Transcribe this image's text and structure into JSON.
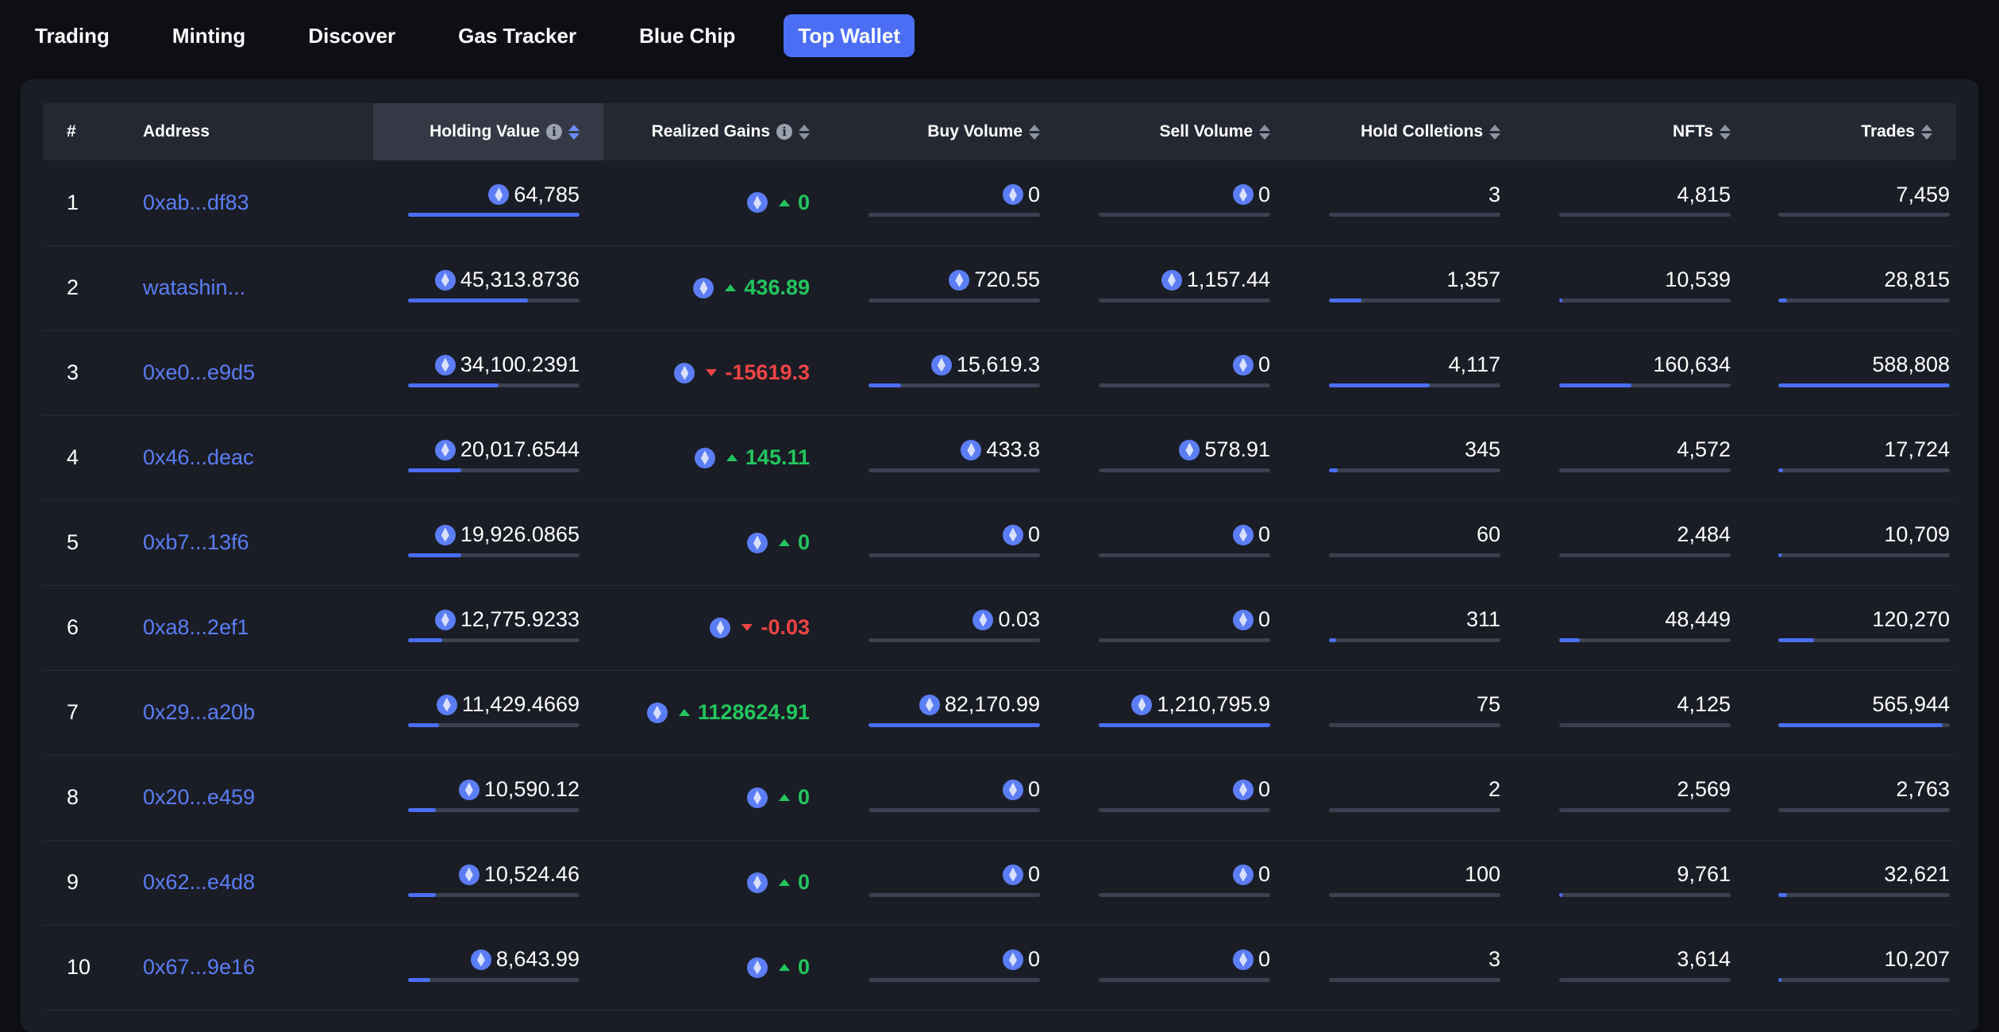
{
  "nav": {
    "tabs": [
      {
        "label": "Trading",
        "active": false
      },
      {
        "label": "Minting",
        "active": false
      },
      {
        "label": "Discover",
        "active": false
      },
      {
        "label": "Gas Tracker",
        "active": false
      },
      {
        "label": "Blue Chip",
        "active": false
      },
      {
        "label": "Top Wallet",
        "active": true
      }
    ]
  },
  "colors": {
    "accent": "#4b6ef5",
    "positive": "#22c55e",
    "negative": "#ef4444",
    "address": "#5b7df6"
  },
  "table": {
    "headers": {
      "rank": "#",
      "address": "Address",
      "holding_value": "Holding Value",
      "realized_gains": "Realized Gains",
      "buy_volume": "Buy Volume",
      "sell_volume": "Sell Volume",
      "hold_collections": "Hold Colletions",
      "nfts": "NFTs",
      "trades": "Trades"
    },
    "rows": [
      {
        "rank": "1",
        "address": "0xab...df83",
        "holding_value": "64,785",
        "holding_pct": 1.0,
        "realized_gains": "0",
        "gain_dir": "up",
        "buy_volume": "0",
        "buy_pct": 0.0,
        "sell_volume": "0",
        "sell_pct": 0.0,
        "hold_collections": "3",
        "collections_pct": 0.0,
        "nfts": "4,815",
        "nfts_pct": 0.0,
        "trades": "7,459",
        "trades_pct": 0.0
      },
      {
        "rank": "2",
        "address": "watashin...",
        "holding_value": "45,313.8736",
        "holding_pct": 0.7,
        "realized_gains": "436.89",
        "gain_dir": "up",
        "buy_volume": "720.55",
        "buy_pct": 0.0,
        "sell_volume": "1,157.44",
        "sell_pct": 0.0,
        "hold_collections": "1,357",
        "collections_pct": 0.19,
        "nfts": "10,539",
        "nfts_pct": 0.02,
        "trades": "28,815",
        "trades_pct": 0.05
      },
      {
        "rank": "3",
        "address": "0xe0...e9d5",
        "holding_value": "34,100.2391",
        "holding_pct": 0.53,
        "realized_gains": "-15619.3",
        "gain_dir": "down",
        "buy_volume": "15,619.3",
        "buy_pct": 0.19,
        "sell_volume": "0",
        "sell_pct": 0.0,
        "hold_collections": "4,117",
        "collections_pct": 0.59,
        "nfts": "160,634",
        "nfts_pct": 0.42,
        "trades": "588,808",
        "trades_pct": 1.0
      },
      {
        "rank": "4",
        "address": "0x46...deac",
        "holding_value": "20,017.6544",
        "holding_pct": 0.31,
        "realized_gains": "145.11",
        "gain_dir": "up",
        "buy_volume": "433.8",
        "buy_pct": 0.0,
        "sell_volume": "578.91",
        "sell_pct": 0.0,
        "hold_collections": "345",
        "collections_pct": 0.05,
        "nfts": "4,572",
        "nfts_pct": 0.0,
        "trades": "17,724",
        "trades_pct": 0.03
      },
      {
        "rank": "5",
        "address": "0xb7...13f6",
        "holding_value": "19,926.0865",
        "holding_pct": 0.31,
        "realized_gains": "0",
        "gain_dir": "up",
        "buy_volume": "0",
        "buy_pct": 0.0,
        "sell_volume": "0",
        "sell_pct": 0.0,
        "hold_collections": "60",
        "collections_pct": 0.0,
        "nfts": "2,484",
        "nfts_pct": 0.0,
        "trades": "10,709",
        "trades_pct": 0.02
      },
      {
        "rank": "6",
        "address": "0xa8...2ef1",
        "holding_value": "12,775.9233",
        "holding_pct": 0.2,
        "realized_gains": "-0.03",
        "gain_dir": "down",
        "buy_volume": "0.03",
        "buy_pct": 0.0,
        "sell_volume": "0",
        "sell_pct": 0.0,
        "hold_collections": "311",
        "collections_pct": 0.04,
        "nfts": "48,449",
        "nfts_pct": 0.12,
        "trades": "120,270",
        "trades_pct": 0.21
      },
      {
        "rank": "7",
        "address": "0x29...a20b",
        "holding_value": "11,429.4669",
        "holding_pct": 0.18,
        "realized_gains": "1128624.91",
        "gain_dir": "up",
        "buy_volume": "82,170.99",
        "buy_pct": 1.0,
        "sell_volume": "1,210,795.9",
        "sell_pct": 1.0,
        "hold_collections": "75",
        "collections_pct": 0.0,
        "nfts": "4,125",
        "nfts_pct": 0.0,
        "trades": "565,944",
        "trades_pct": 0.96
      },
      {
        "rank": "8",
        "address": "0x20...e459",
        "holding_value": "10,590.12",
        "holding_pct": 0.16,
        "realized_gains": "0",
        "gain_dir": "up",
        "buy_volume": "0",
        "buy_pct": 0.0,
        "sell_volume": "0",
        "sell_pct": 0.0,
        "hold_collections": "2",
        "collections_pct": 0.0,
        "nfts": "2,569",
        "nfts_pct": 0.0,
        "trades": "2,763",
        "trades_pct": 0.0
      },
      {
        "rank": "9",
        "address": "0x62...e4d8",
        "holding_value": "10,524.46",
        "holding_pct": 0.16,
        "realized_gains": "0",
        "gain_dir": "up",
        "buy_volume": "0",
        "buy_pct": 0.0,
        "sell_volume": "0",
        "sell_pct": 0.0,
        "hold_collections": "100",
        "collections_pct": 0.0,
        "nfts": "9,761",
        "nfts_pct": 0.02,
        "trades": "32,621",
        "trades_pct": 0.05
      },
      {
        "rank": "10",
        "address": "0x67...9e16",
        "holding_value": "8,643.99",
        "holding_pct": 0.13,
        "realized_gains": "0",
        "gain_dir": "up",
        "buy_volume": "0",
        "buy_pct": 0.0,
        "sell_volume": "0",
        "sell_pct": 0.0,
        "hold_collections": "3",
        "collections_pct": 0.0,
        "nfts": "3,614",
        "nfts_pct": 0.0,
        "trades": "10,207",
        "trades_pct": 0.02
      }
    ]
  }
}
